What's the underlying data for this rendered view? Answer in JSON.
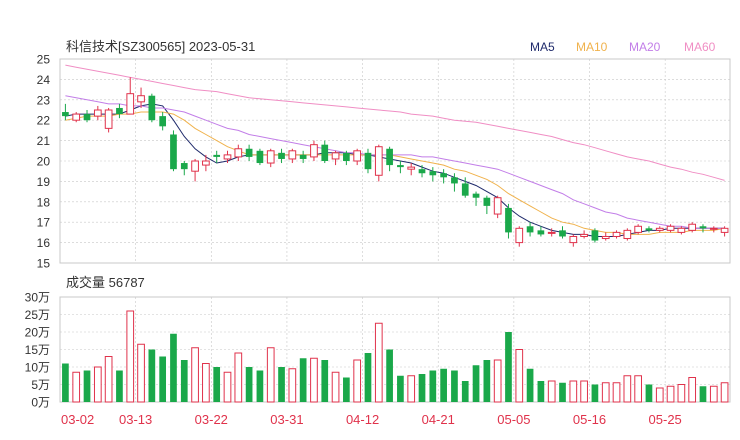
{
  "header": {
    "title": "科信技术[SZ300565] 2023-05-31"
  },
  "legend": [
    {
      "label": "MA5",
      "color": "#1f2a6b"
    },
    {
      "label": "MA10",
      "color": "#f0b24c"
    },
    {
      "label": "MA20",
      "color": "#c27ee8"
    },
    {
      "label": "MA60",
      "color": "#f08ec4"
    }
  ],
  "colors": {
    "up": "#e0324b",
    "down": "#1aa84a",
    "grid": "#c8c8c8",
    "axis": "#333333"
  },
  "chart_data": {
    "type": "candlestick",
    "price_axis": {
      "ylim": [
        15,
        25
      ],
      "ticks": [
        "15",
        "16",
        "17",
        "18",
        "19",
        "20",
        "21",
        "22",
        "23",
        "24",
        "25"
      ]
    },
    "volume_axis": {
      "label": "成交量",
      "value": "56787",
      "ylim": [
        0,
        30
      ],
      "unit": "万",
      "ticks": [
        "0万",
        "5万",
        "10万",
        "15万",
        "20万",
        "25万",
        "30万"
      ]
    },
    "x_labels": [
      {
        "index": 0,
        "label": "03-02"
      },
      {
        "index": 7,
        "label": "03-13"
      },
      {
        "index": 14,
        "label": "03-22"
      },
      {
        "index": 21,
        "label": "03-31"
      },
      {
        "index": 28,
        "label": "04-12"
      },
      {
        "index": 35,
        "label": "04-21"
      },
      {
        "index": 42,
        "label": "05-05"
      },
      {
        "index": 49,
        "label": "05-16"
      },
      {
        "index": 56,
        "label": "05-25"
      }
    ],
    "candles": [
      [
        22.4,
        22.2,
        22.8,
        22.0,
        11
      ],
      [
        22.0,
        22.3,
        22.4,
        21.9,
        8.5
      ],
      [
        22.3,
        22.0,
        22.5,
        21.9,
        9
      ],
      [
        22.2,
        22.5,
        22.7,
        22.0,
        10
      ],
      [
        21.6,
        22.5,
        22.6,
        21.4,
        13
      ],
      [
        22.6,
        22.3,
        22.8,
        22.1,
        9
      ],
      [
        22.3,
        23.3,
        24.1,
        22.3,
        26
      ],
      [
        22.9,
        23.2,
        23.6,
        22.6,
        16.5
      ],
      [
        23.2,
        22.0,
        23.3,
        21.9,
        15
      ],
      [
        22.2,
        21.7,
        22.4,
        21.5,
        13
      ],
      [
        21.3,
        19.6,
        21.5,
        19.5,
        19.5
      ],
      [
        19.9,
        19.6,
        20.0,
        19.3,
        12
      ],
      [
        19.5,
        20.0,
        20.1,
        19.0,
        15.5
      ],
      [
        19.8,
        20.0,
        20.3,
        19.5,
        11
      ],
      [
        20.3,
        20.2,
        20.5,
        19.9,
        10
      ],
      [
        20.1,
        20.3,
        20.5,
        19.9,
        8.5
      ],
      [
        20.2,
        20.6,
        20.8,
        20.0,
        14
      ],
      [
        20.6,
        20.2,
        20.8,
        20.0,
        10
      ],
      [
        20.5,
        19.9,
        20.6,
        19.8,
        9
      ],
      [
        19.9,
        20.5,
        20.6,
        19.7,
        15.5
      ],
      [
        20.4,
        20.1,
        20.6,
        19.9,
        10
      ],
      [
        20.1,
        20.5,
        20.6,
        19.9,
        9.5
      ],
      [
        20.3,
        20.1,
        20.5,
        19.9,
        12.5
      ],
      [
        20.2,
        20.8,
        21.0,
        20.0,
        12.5
      ],
      [
        20.8,
        20.0,
        21.0,
        19.9,
        12
      ],
      [
        20.1,
        20.4,
        20.5,
        19.8,
        8.5
      ],
      [
        20.4,
        20.0,
        20.5,
        19.8,
        7
      ],
      [
        20.0,
        20.5,
        20.6,
        19.8,
        12
      ],
      [
        20.4,
        19.6,
        20.6,
        19.4,
        14
      ],
      [
        19.3,
        20.7,
        20.8,
        19.0,
        22.5
      ],
      [
        20.6,
        19.8,
        20.7,
        19.5,
        15
      ],
      [
        19.8,
        19.7,
        20.0,
        19.4,
        7.5
      ],
      [
        19.6,
        19.7,
        19.9,
        19.3,
        7.5
      ],
      [
        19.6,
        19.4,
        19.8,
        19.2,
        8
      ],
      [
        19.5,
        19.3,
        19.7,
        19.0,
        9
      ],
      [
        19.4,
        19.2,
        19.6,
        18.9,
        9.5
      ],
      [
        19.2,
        18.9,
        19.4,
        18.5,
        9
      ],
      [
        18.9,
        18.3,
        19.2,
        18.2,
        6
      ],
      [
        18.4,
        18.2,
        18.5,
        17.8,
        10.5
      ],
      [
        18.2,
        17.8,
        18.3,
        17.4,
        12
      ],
      [
        17.4,
        18.2,
        18.3,
        17.2,
        12
      ],
      [
        17.7,
        16.5,
        17.9,
        16.2,
        20
      ],
      [
        16.0,
        16.7,
        16.8,
        15.8,
        15
      ],
      [
        16.8,
        16.5,
        17.0,
        16.3,
        9.5
      ],
      [
        16.6,
        16.4,
        16.8,
        16.3,
        6
      ],
      [
        16.5,
        16.5,
        16.7,
        16.3,
        6
      ],
      [
        16.6,
        16.3,
        16.8,
        16.2,
        5.5
      ],
      [
        16.0,
        16.3,
        16.4,
        15.8,
        6
      ],
      [
        16.3,
        16.4,
        16.6,
        16.2,
        6
      ],
      [
        16.6,
        16.1,
        16.7,
        16.0,
        5
      ],
      [
        16.2,
        16.3,
        16.5,
        16.1,
        5.5
      ],
      [
        16.3,
        16.5,
        16.6,
        16.2,
        5.5
      ],
      [
        16.2,
        16.6,
        16.7,
        16.1,
        7.5
      ],
      [
        16.5,
        16.8,
        16.9,
        16.4,
        7.5
      ],
      [
        16.7,
        16.6,
        16.8,
        16.5,
        5
      ],
      [
        16.6,
        16.7,
        16.8,
        16.5,
        4
      ],
      [
        16.6,
        16.8,
        16.9,
        16.5,
        4.5
      ],
      [
        16.5,
        16.7,
        16.8,
        16.4,
        5
      ],
      [
        16.6,
        16.9,
        17.0,
        16.5,
        7
      ],
      [
        16.8,
        16.7,
        16.9,
        16.5,
        4.5
      ],
      [
        16.7,
        16.7,
        16.8,
        16.5,
        4.5
      ],
      [
        16.5,
        16.7,
        16.8,
        16.3,
        5.5
      ]
    ],
    "ma": {
      "MA5": [
        22.2,
        22.3,
        22.3,
        22.3,
        22.3,
        22.3,
        22.5,
        22.7,
        22.8,
        22.7,
        22.0,
        21.2,
        20.6,
        20.2,
        19.9,
        20.0,
        20.2,
        20.3,
        20.3,
        20.3,
        20.3,
        20.3,
        20.3,
        20.3,
        20.4,
        20.4,
        20.4,
        20.3,
        20.3,
        20.2,
        20.1,
        20.0,
        19.9,
        19.7,
        19.5,
        19.4,
        19.2,
        19.0,
        18.8,
        18.5,
        18.2,
        17.7,
        17.3,
        17.0,
        16.8,
        16.6,
        16.5,
        16.4,
        16.4,
        16.3,
        16.3,
        16.3,
        16.4,
        16.5,
        16.6,
        16.6,
        16.7,
        16.7,
        16.7,
        16.7,
        16.7,
        16.7
      ],
      "MA10": [
        22.0,
        22.1,
        22.2,
        22.2,
        22.2,
        22.3,
        22.3,
        22.4,
        22.4,
        22.4,
        22.3,
        22.0,
        21.6,
        21.3,
        21.0,
        20.7,
        20.5,
        20.3,
        20.3,
        20.3,
        20.3,
        20.3,
        20.3,
        20.3,
        20.3,
        20.3,
        20.3,
        20.3,
        20.3,
        20.3,
        20.3,
        20.2,
        20.1,
        20.0,
        19.9,
        19.8,
        19.6,
        19.5,
        19.3,
        19.1,
        18.8,
        18.4,
        18.1,
        17.8,
        17.5,
        17.2,
        17.0,
        16.9,
        16.7,
        16.6,
        16.5,
        16.5,
        16.4,
        16.4,
        16.4,
        16.5,
        16.5,
        16.5,
        16.6,
        16.6,
        16.6,
        16.7
      ],
      "MA20": [
        23.2,
        23.1,
        23.0,
        22.9,
        22.8,
        22.8,
        22.7,
        22.7,
        22.6,
        22.6,
        22.5,
        22.4,
        22.2,
        22.0,
        21.8,
        21.6,
        21.5,
        21.3,
        21.2,
        21.1,
        21.0,
        20.9,
        20.8,
        20.7,
        20.6,
        20.5,
        20.4,
        20.4,
        20.3,
        20.3,
        20.3,
        20.3,
        20.3,
        20.2,
        20.2,
        20.1,
        20.0,
        19.9,
        19.8,
        19.7,
        19.6,
        19.4,
        19.2,
        19.0,
        18.8,
        18.6,
        18.4,
        18.1,
        17.9,
        17.7,
        17.5,
        17.4,
        17.2,
        17.1,
        17.0,
        16.9,
        16.8,
        16.8,
        16.7,
        16.7,
        16.7,
        16.7
      ],
      "MA60": [
        24.7,
        24.6,
        24.5,
        24.4,
        24.3,
        24.2,
        24.1,
        24.0,
        23.9,
        23.8,
        23.7,
        23.6,
        23.5,
        23.45,
        23.4,
        23.3,
        23.2,
        23.1,
        23.05,
        23.0,
        22.95,
        22.9,
        22.85,
        22.8,
        22.75,
        22.7,
        22.65,
        22.6,
        22.55,
        22.5,
        22.45,
        22.4,
        22.3,
        22.25,
        22.2,
        22.1,
        22.0,
        21.95,
        21.9,
        21.8,
        21.7,
        21.6,
        21.5,
        21.4,
        21.3,
        21.2,
        21.05,
        20.9,
        20.8,
        20.65,
        20.5,
        20.35,
        20.2,
        20.1,
        20.0,
        19.85,
        19.7,
        19.6,
        19.45,
        19.35,
        19.2,
        19.05
      ]
    }
  }
}
